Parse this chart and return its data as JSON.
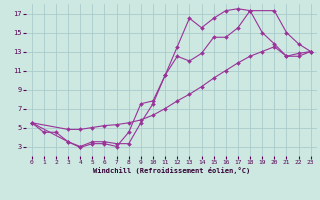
{
  "background_color": "#cce8e0",
  "grid_color": "#aacccc",
  "line_color": "#993399",
  "xlabel": "Windchill (Refroidissement éolien,°C)",
  "xlim": [
    -0.5,
    23.5
  ],
  "ylim": [
    2,
    18
  ],
  "xticks": [
    0,
    1,
    2,
    3,
    4,
    5,
    6,
    7,
    8,
    9,
    10,
    11,
    12,
    13,
    14,
    15,
    16,
    17,
    18,
    19,
    20,
    21,
    22,
    23
  ],
  "yticks": [
    3,
    5,
    7,
    9,
    11,
    13,
    15,
    17
  ],
  "curve1_x": [
    0,
    1,
    2,
    3,
    4,
    5,
    6,
    7,
    8,
    9,
    10,
    11,
    12,
    13,
    14,
    15,
    16,
    17,
    18,
    19,
    20,
    21,
    22,
    23
  ],
  "curve1_y": [
    5.5,
    4.5,
    4.5,
    3.5,
    2.9,
    3.3,
    3.3,
    3.0,
    4.5,
    7.5,
    7.8,
    10.5,
    13.5,
    16.5,
    15.5,
    16.5,
    17.3,
    17.5,
    17.3,
    15.0,
    13.8,
    12.5,
    12.8,
    13.0
  ],
  "curve2_x": [
    0,
    3,
    4,
    5,
    6,
    7,
    8,
    9,
    10,
    11,
    12,
    13,
    14,
    15,
    16,
    17,
    18,
    20,
    21,
    22,
    23
  ],
  "curve2_y": [
    5.5,
    3.5,
    3.0,
    3.5,
    3.5,
    3.3,
    3.3,
    5.5,
    7.5,
    10.5,
    12.5,
    12.0,
    12.8,
    14.5,
    14.5,
    15.5,
    17.3,
    17.3,
    15.0,
    13.8,
    13.0
  ],
  "curve3_x": [
    0,
    3,
    4,
    5,
    6,
    7,
    8,
    9,
    10,
    11,
    12,
    13,
    14,
    15,
    16,
    17,
    18,
    19,
    20,
    21,
    22,
    23
  ],
  "curve3_y": [
    5.5,
    4.8,
    4.8,
    5.0,
    5.2,
    5.3,
    5.5,
    5.8,
    6.3,
    7.0,
    7.8,
    8.5,
    9.3,
    10.2,
    11.0,
    11.8,
    12.5,
    13.0,
    13.5,
    12.5,
    12.5,
    13.0
  ]
}
